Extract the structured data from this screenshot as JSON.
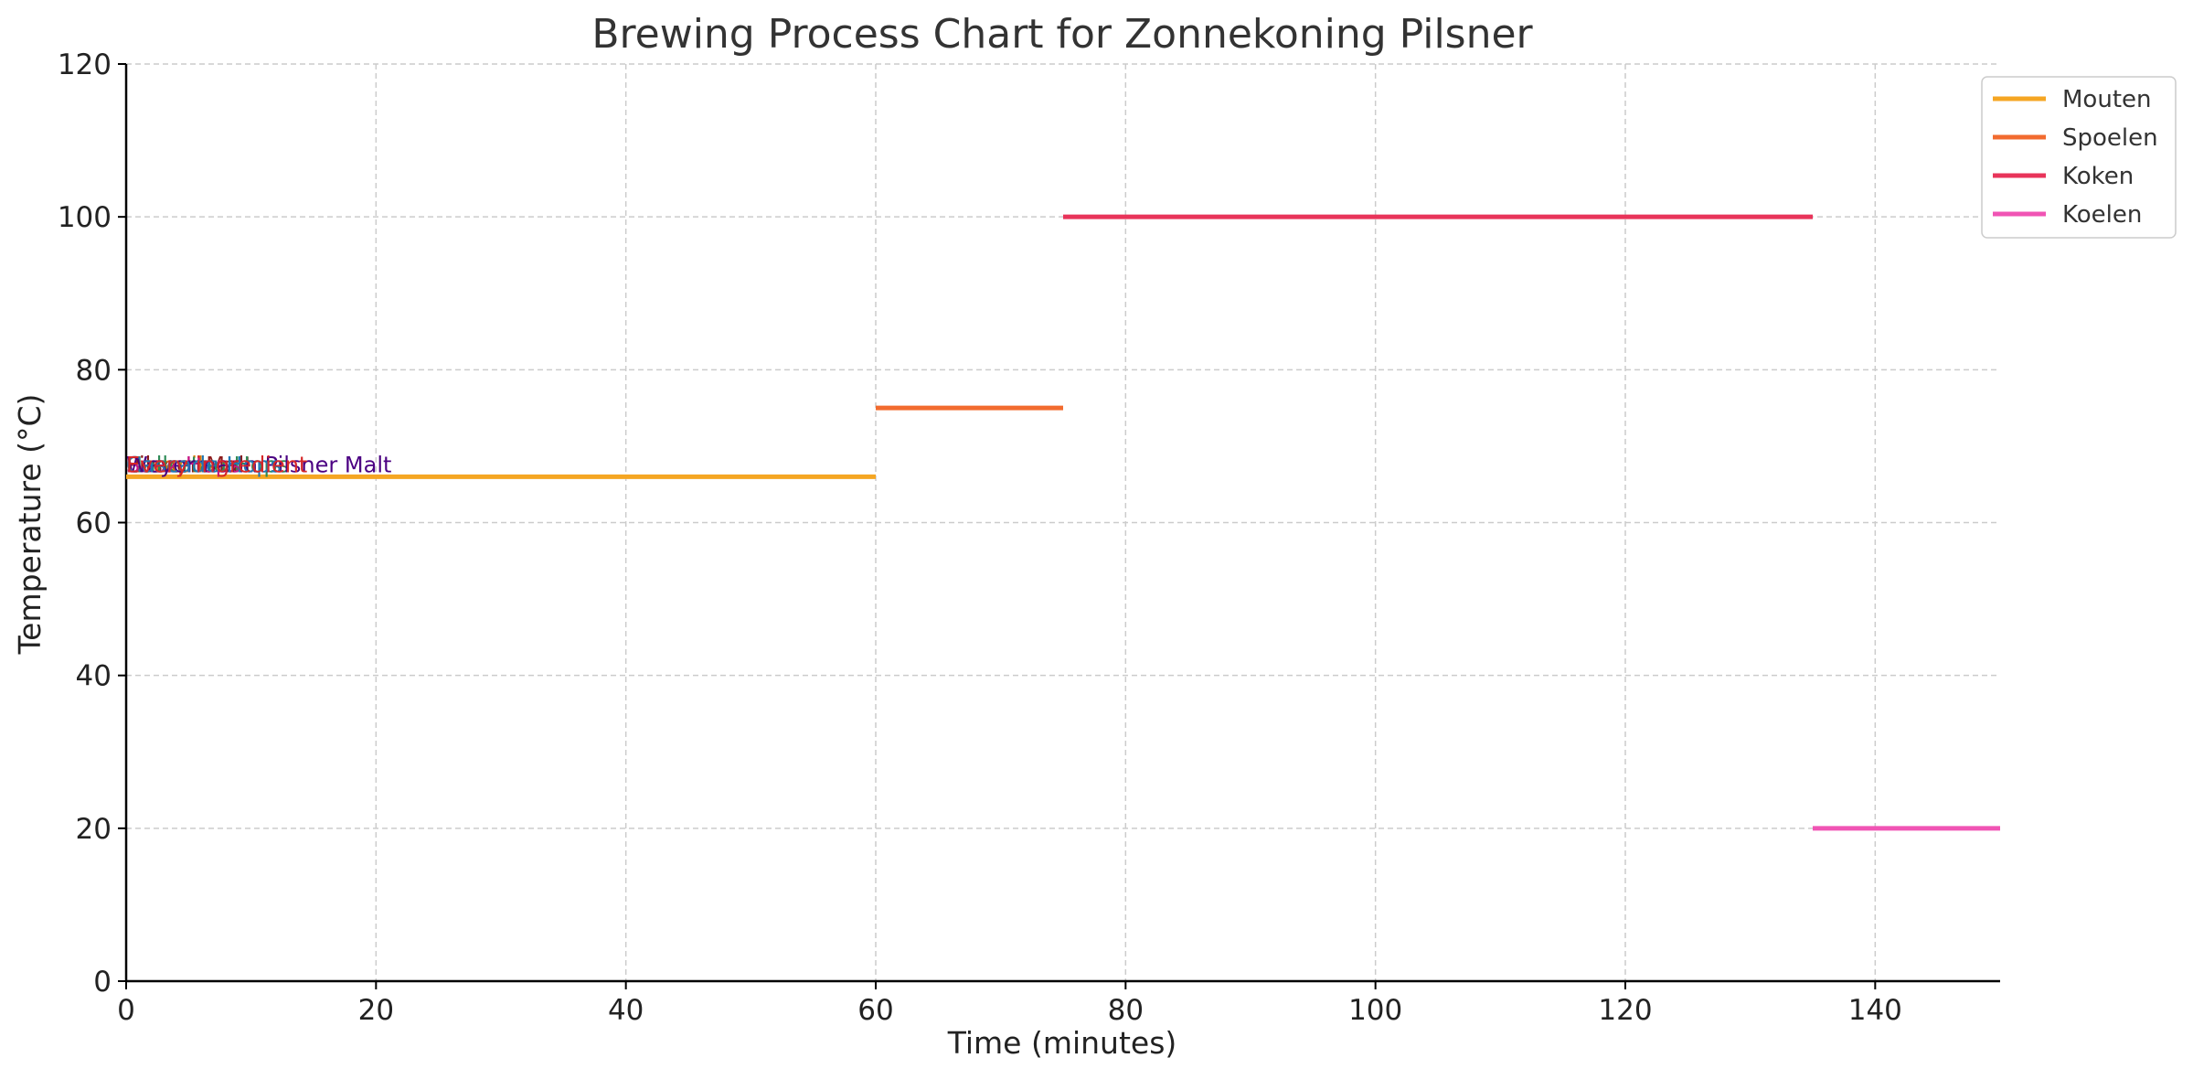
{
  "chart_data": {
    "type": "line",
    "title": "Brewing Process Chart for Zonnekoning Pilsner",
    "xlabel": "Time (minutes)",
    "ylabel": "Temperature (°C)",
    "xlim": [
      0,
      150
    ],
    "ylim": [
      0,
      120
    ],
    "xticks": [
      0,
      20,
      40,
      60,
      80,
      100,
      120,
      140
    ],
    "yticks": [
      0,
      20,
      40,
      60,
      80,
      100,
      120
    ],
    "grid": true,
    "legend_position": "top-right",
    "series": [
      {
        "name": "Mouten",
        "color": "#f5a623",
        "x": [
          0,
          60
        ],
        "y": [
          66,
          66
        ]
      },
      {
        "name": "Spoelen",
        "color": "#f26b2f",
        "x": [
          60,
          75
        ],
        "y": [
          75,
          75
        ]
      },
      {
        "name": "Koken",
        "color": "#e8345a",
        "x": [
          75,
          135
        ],
        "y": [
          100,
          100
        ]
      },
      {
        "name": "Koelen",
        "color": "#f054b4",
        "x": [
          135,
          150
        ],
        "y": [
          20,
          20
        ]
      }
    ],
    "annotations": [
      {
        "text": "Pilsner Malt",
        "x": 0,
        "y": 66,
        "color": "#8b1a1a"
      },
      {
        "text": "Carapils",
        "x": 0,
        "y": 66,
        "color": "#e07b00"
      },
      {
        "text": "Hallertau Hops",
        "x": 0,
        "y": 66,
        "color": "#2e8b57"
      },
      {
        "text": "Saaz Hops",
        "x": 0,
        "y": 66,
        "color": "#c71585"
      },
      {
        "text": "Weyermann Pilsner Malt",
        "x": 0,
        "y": 66,
        "color": "#4b0082"
      },
      {
        "text": "Cascade Hops",
        "x": 0,
        "y": 66,
        "color": "#1f77b4"
      },
      {
        "text": "Every ingredient",
        "x": 0,
        "y": 66,
        "color": "#d62728"
      }
    ]
  }
}
